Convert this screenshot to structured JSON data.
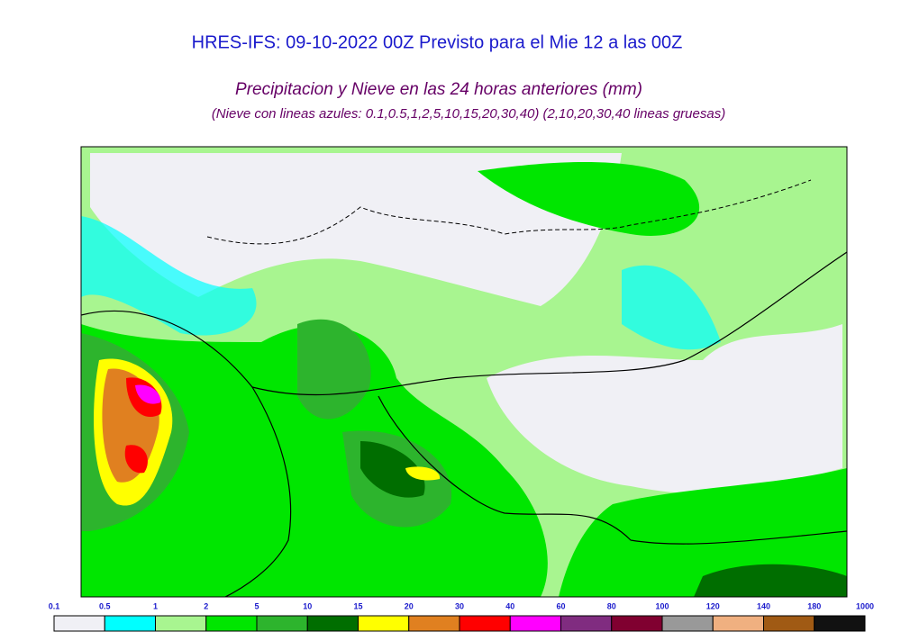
{
  "header": {
    "title": "HRES-IFS: 09-10-2022 00Z Previsto para el Mie 12 a las 00Z",
    "subtitle": "Precipitacion y Nieve en las 24 horas anteriores (mm)",
    "note": "(Nieve con lineas azules: 0.1,0.5,1,2,5,10,15,20,30,40)  (2,10,20,30,40 lineas gruesas)"
  },
  "legend": {
    "labels": [
      "0.1",
      "0.5",
      "1",
      "2",
      "5",
      "10",
      "15",
      "20",
      "30",
      "40",
      "60",
      "80",
      "100",
      "120",
      "140",
      "180",
      "1000"
    ],
    "colors": [
      "#f0f0f5",
      "#00ffff",
      "#a8f590",
      "#00e600",
      "#2db42d",
      "#006e00",
      "#ffff00",
      "#e08020",
      "#ff0000",
      "#ff00ff",
      "#802c80",
      "#800030",
      "#999999",
      "#f0b080",
      "#a05a14",
      "#111111"
    ]
  }
}
